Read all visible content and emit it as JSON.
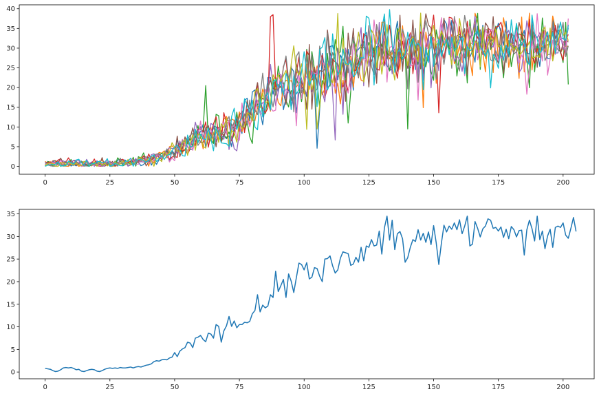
{
  "chart_data": [
    {
      "type": "line",
      "title": "",
      "xlabel": "",
      "ylabel": "",
      "xlim": [
        -10,
        212
      ],
      "ylim": [
        -2,
        41
      ],
      "xticks": [
        0,
        25,
        50,
        75,
        100,
        125,
        150,
        175,
        200
      ],
      "yticks": [
        0,
        5,
        10,
        15,
        20,
        25,
        30,
        35,
        40
      ],
      "grid": false,
      "n_points": 203,
      "series_count": 10,
      "series_colors": [
        "#1f77b4",
        "#ff7f0e",
        "#2ca02c",
        "#d62728",
        "#9467bd",
        "#8c564b",
        "#e377c2",
        "#7f7f7f",
        "#bcbd22",
        "#17becf"
      ],
      "mean_keypoints": [
        [
          0,
          0.7
        ],
        [
          10,
          0.8
        ],
        [
          20,
          0.4
        ],
        [
          30,
          0.9
        ],
        [
          40,
          1.5
        ],
        [
          45,
          2.7
        ],
        [
          50,
          3.5
        ],
        [
          55,
          6.0
        ],
        [
          60,
          7.5
        ],
        [
          65,
          8.5
        ],
        [
          70,
          9.5
        ],
        [
          75,
          11.0
        ],
        [
          80,
          14.5
        ],
        [
          85,
          16.5
        ],
        [
          90,
          19.5
        ],
        [
          95,
          21.0
        ],
        [
          100,
          22.5
        ],
        [
          105,
          23.0
        ],
        [
          110,
          24.0
        ],
        [
          115,
          25.5
        ],
        [
          120,
          26.0
        ],
        [
          125,
          28.0
        ],
        [
          130,
          30.0
        ],
        [
          135,
          29.5
        ],
        [
          140,
          27.5
        ],
        [
          145,
          29.5
        ],
        [
          150,
          29.0
        ],
        [
          155,
          31.5
        ],
        [
          160,
          31.5
        ],
        [
          165,
          31.0
        ],
        [
          170,
          31.5
        ],
        [
          175,
          31.0
        ],
        [
          180,
          31.0
        ],
        [
          185,
          31.0
        ],
        [
          190,
          31.0
        ],
        [
          195,
          31.0
        ],
        [
          200,
          31.5
        ],
        [
          202,
          31.0
        ]
      ],
      "noise_amplitude": [
        [
          0,
          0.6
        ],
        [
          40,
          1.0
        ],
        [
          60,
          2.5
        ],
        [
          80,
          4.0
        ],
        [
          100,
          5.5
        ],
        [
          130,
          6.0
        ],
        [
          202,
          4.0
        ]
      ],
      "outliers": [
        [
          62,
          2,
          20.5
        ],
        [
          88,
          3,
          38.5
        ],
        [
          87,
          3,
          38.0
        ],
        [
          105,
          0,
          4.6
        ],
        [
          113,
          8,
          38.8
        ],
        [
          133,
          9,
          39.8
        ],
        [
          140,
          2,
          9.5
        ],
        [
          152,
          3,
          13.6
        ],
        [
          186,
          6,
          18.3
        ],
        [
          202,
          2,
          20.8
        ],
        [
          101,
          8,
          9.4
        ],
        [
          112,
          4,
          6.7
        ]
      ]
    },
    {
      "type": "line",
      "title": "",
      "xlabel": "",
      "ylabel": "",
      "xlim": [
        -10,
        212
      ],
      "ylim": [
        -1.5,
        36.0
      ],
      "xticks": [
        0,
        25,
        50,
        75,
        100,
        125,
        150,
        175,
        200
      ],
      "yticks": [
        0,
        5,
        10,
        15,
        20,
        25,
        30,
        35
      ],
      "grid": false,
      "color": "#1f77b4",
      "x_start": 0,
      "values": [
        0.8,
        0.7,
        0.6,
        0.3,
        0.1,
        0.2,
        0.5,
        0.9,
        1.0,
        0.9,
        1.0,
        0.8,
        0.5,
        0.6,
        0.2,
        0.1,
        0.3,
        0.5,
        0.6,
        0.5,
        0.2,
        0.1,
        0.3,
        0.6,
        0.8,
        0.9,
        0.8,
        0.9,
        0.8,
        1.0,
        0.9,
        0.9,
        1.0,
        1.1,
        0.9,
        1.1,
        1.2,
        1.1,
        1.3,
        1.5,
        1.6,
        1.8,
        2.3,
        2.5,
        2.4,
        2.7,
        2.8,
        2.7,
        3.1,
        3.3,
        4.3,
        3.4,
        4.6,
        5.1,
        5.4,
        6.6,
        6.4,
        5.4,
        7.5,
        7.7,
        8.1,
        7.2,
        6.7,
        8.6,
        8.4,
        7.5,
        10.5,
        10.1,
        6.6,
        9.1,
        10.2,
        12.3,
        10.1,
        11.3,
        9.8,
        10.5,
        10.5,
        11.0,
        10.9,
        11.2,
        12.9,
        13.6,
        17.1,
        13.3,
        14.8,
        14.2,
        14.6,
        17.1,
        16.5,
        22.3,
        17.8,
        19.1,
        20.5,
        16.5,
        21.7,
        20.1,
        17.6,
        20.9,
        24.1,
        23.8,
        22.6,
        24.2,
        20.6,
        21.0,
        23.1,
        22.9,
        21.2,
        20.0,
        25.0,
        25.1,
        25.7,
        23.5,
        21.9,
        22.6,
        25.2,
        26.6,
        26.4,
        26.2,
        23.6,
        23.9,
        25.4,
        24.3,
        27.6,
        24.6,
        27.9,
        27.6,
        29.3,
        27.9,
        28.1,
        31.2,
        26.1,
        31.9,
        34.5,
        29.2,
        33.6,
        27.1,
        30.6,
        31.1,
        29.5,
        24.3,
        25.3,
        27.6,
        29.3,
        28.9,
        31.5,
        29.2,
        30.7,
        28.7,
        31.0,
        28.2,
        32.4,
        28.6,
        23.8,
        28.5,
        32.5,
        31.0,
        32.3,
        31.6,
        33.0,
        31.5,
        33.7,
        30.6,
        32.3,
        34.5,
        27.9,
        28.3,
        33.3,
        31.8,
        29.9,
        31.7,
        32.3,
        33.9,
        33.6,
        31.8,
        32.0,
        31.2,
        32.1,
        29.8,
        31.6,
        29.5,
        32.2,
        31.5,
        29.9,
        31.3,
        31.4,
        25.9,
        31.5,
        33.6,
        31.7,
        29.0,
        34.5,
        29.3,
        31.2,
        27.3,
        30.1,
        31.6,
        27.6,
        32.0,
        32.3,
        32.0,
        33.0,
        30.3,
        29.6,
        31.8,
        34.2,
        31.1
      ]
    }
  ]
}
